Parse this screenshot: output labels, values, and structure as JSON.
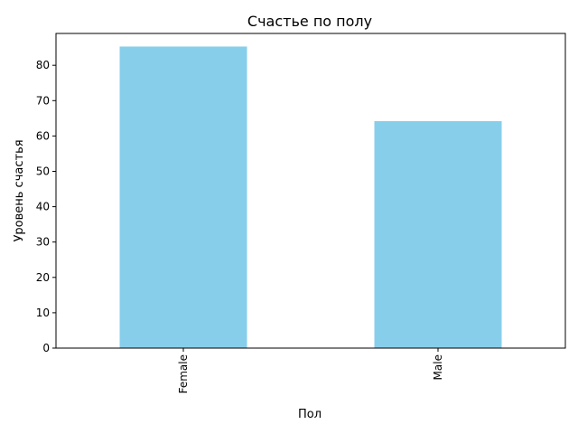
{
  "chart_data": {
    "type": "bar",
    "title": "Счастье по полу",
    "xlabel": "Пол",
    "ylabel": "Уровень счастья",
    "categories": [
      "Female",
      "Male"
    ],
    "values": [
      85.3,
      64.2
    ],
    "ylim": [
      0,
      89
    ],
    "yticks": [
      0,
      10,
      20,
      30,
      40,
      50,
      60,
      70,
      80
    ],
    "bar_color": "#87ceeb",
    "grid": false,
    "legend": "none"
  }
}
